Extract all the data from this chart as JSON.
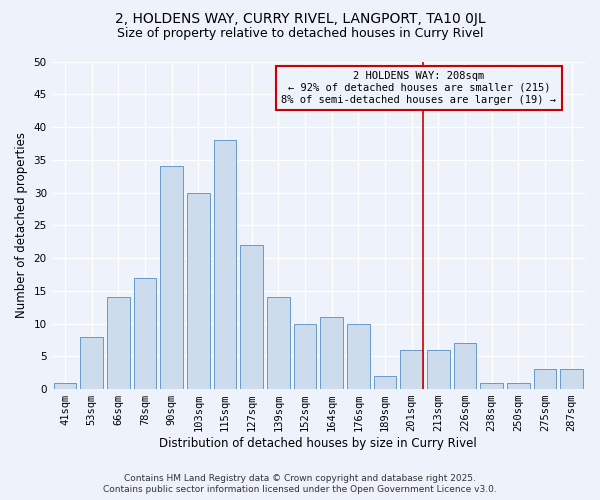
{
  "title1": "2, HOLDENS WAY, CURRY RIVEL, LANGPORT, TA10 0JL",
  "title2": "Size of property relative to detached houses in Curry Rivel",
  "xlabel": "Distribution of detached houses by size in Curry Rivel",
  "ylabel": "Number of detached properties",
  "categories": [
    "41sqm",
    "53sqm",
    "66sqm",
    "78sqm",
    "90sqm",
    "103sqm",
    "115sqm",
    "127sqm",
    "139sqm",
    "152sqm",
    "164sqm",
    "176sqm",
    "189sqm",
    "201sqm",
    "213sqm",
    "226sqm",
    "238sqm",
    "250sqm",
    "275sqm",
    "287sqm"
  ],
  "values": [
    1,
    8,
    14,
    17,
    34,
    30,
    38,
    22,
    14,
    10,
    11,
    10,
    2,
    6,
    6,
    7,
    1,
    1,
    3,
    3
  ],
  "bar_color": "#ccdcec",
  "bar_edge_color": "#6699cc",
  "background_color": "#eef2fb",
  "grid_color": "#ffffff",
  "vline_x_index": 13.42,
  "vline_color": "#cc0000",
  "annotation_line1": "2 HOLDENS WAY: 208sqm",
  "annotation_line2": "← 92% of detached houses are smaller (215)",
  "annotation_line3": "8% of semi-detached houses are larger (19) →",
  "annotation_box_color": "#cc0000",
  "footer_line1": "Contains HM Land Registry data © Crown copyright and database right 2025.",
  "footer_line2": "Contains public sector information licensed under the Open Government Licence v3.0.",
  "ylim": [
    0,
    50
  ],
  "yticks": [
    0,
    5,
    10,
    15,
    20,
    25,
    30,
    35,
    40,
    45,
    50
  ],
  "title1_fontsize": 10,
  "title2_fontsize": 9,
  "xlabel_fontsize": 8.5,
  "ylabel_fontsize": 8.5,
  "tick_fontsize": 7.5,
  "annot_fontsize": 7.5,
  "footer_fontsize": 6.5
}
